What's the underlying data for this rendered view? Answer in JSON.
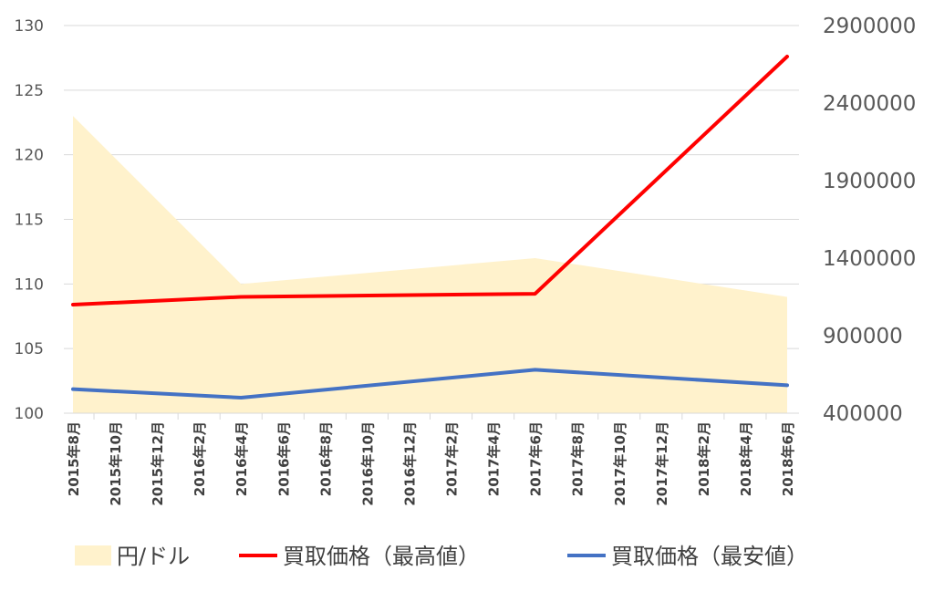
{
  "chart_data": {
    "type": "line",
    "categories": [
      "2015年8月",
      "2015年10月",
      "2015年12月",
      "2016年2月",
      "2016年4月",
      "2016年6月",
      "2016年8月",
      "2016年10月",
      "2016年12月",
      "2017年2月",
      "2017年4月",
      "2017年6月",
      "2017年8月",
      "2017年10月",
      "2017年12月",
      "2018年2月",
      "2018年4月",
      "2018年6月"
    ],
    "left_axis": {
      "ylim": [
        100,
        130
      ],
      "ticks": [
        "100",
        "105",
        "110",
        "115",
        "120",
        "125",
        "130"
      ]
    },
    "right_axis": {
      "ylim": [
        400000,
        2900000
      ],
      "ticks": [
        "400000",
        "900000",
        "1400000",
        "1900000",
        "2400000",
        "2900000"
      ]
    },
    "grid": true,
    "legend_position": "bottom",
    "series": [
      {
        "name": "円/ドル",
        "kind": "area",
        "axis": "left",
        "color": "#FFF2CC",
        "points": [
          {
            "x": "2015年8月",
            "y": 123
          },
          {
            "x": "2016年4月",
            "y": 110
          },
          {
            "x": "2017年6月",
            "y": 112
          },
          {
            "x": "2018年6月",
            "y": 109
          }
        ]
      },
      {
        "name": "買取価格（最高値）",
        "kind": "line",
        "axis": "right",
        "color": "#FF0000",
        "points": [
          {
            "x": "2015年8月",
            "y": 1100000
          },
          {
            "x": "2016年4月",
            "y": 1150000
          },
          {
            "x": "2017年6月",
            "y": 1170000
          },
          {
            "x": "2018年6月",
            "y": 2700000
          }
        ]
      },
      {
        "name": "買取価格（最安値）",
        "kind": "line",
        "axis": "right",
        "color": "#4472C4",
        "points": [
          {
            "x": "2015年8月",
            "y": 555000
          },
          {
            "x": "2016年4月",
            "y": 500000
          },
          {
            "x": "2017年6月",
            "y": 680000
          },
          {
            "x": "2018年6月",
            "y": 580000
          }
        ]
      }
    ]
  }
}
